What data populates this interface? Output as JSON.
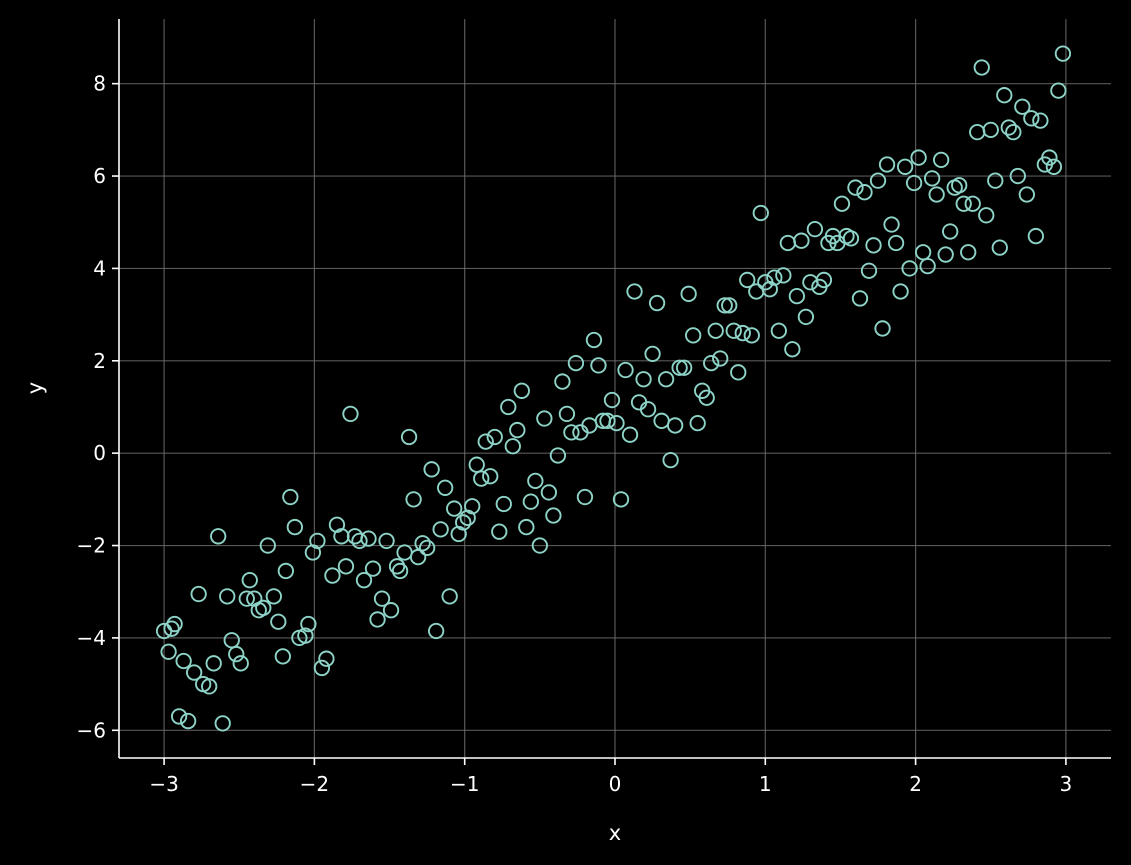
{
  "chart_data": {
    "type": "scatter",
    "xlabel": "x",
    "ylabel": "y",
    "xlim": [
      -3.3,
      3.3
    ],
    "ylim": [
      -6.6,
      9.4
    ],
    "x_ticks": [
      -3,
      -2,
      -1,
      0,
      1,
      2,
      3
    ],
    "y_ticks": [
      -6,
      -4,
      -2,
      0,
      2,
      4,
      6,
      8
    ],
    "x_tick_labels": [
      "−3",
      "−2",
      "−1",
      "0",
      "1",
      "2",
      "3"
    ],
    "y_tick_labels": [
      "−6",
      "−4",
      "−2",
      "0",
      "2",
      "4",
      "6",
      "8"
    ],
    "grid": true,
    "legend": false,
    "colors": {
      "background": "#000000",
      "marker": "#8dd3c7",
      "axis": "#ffffff",
      "grid": "#6e6e6e"
    },
    "marker": "hollow-circle",
    "series": [
      {
        "points": [
          [
            -3.0,
            -3.85
          ],
          [
            -2.97,
            -4.3
          ],
          [
            -2.95,
            -3.8
          ],
          [
            -2.93,
            -3.7
          ],
          [
            -2.9,
            -5.7
          ],
          [
            -2.87,
            -4.5
          ],
          [
            -2.84,
            -5.8
          ],
          [
            -2.8,
            -4.75
          ],
          [
            -2.77,
            -3.05
          ],
          [
            -2.74,
            -5.0
          ],
          [
            -2.7,
            -5.05
          ],
          [
            -2.67,
            -4.55
          ],
          [
            -2.64,
            -1.8
          ],
          [
            -2.61,
            -5.85
          ],
          [
            -2.58,
            -3.1
          ],
          [
            -2.55,
            -4.05
          ],
          [
            -2.52,
            -4.35
          ],
          [
            -2.49,
            -4.55
          ],
          [
            -2.45,
            -3.15
          ],
          [
            -2.43,
            -2.75
          ],
          [
            -2.4,
            -3.15
          ],
          [
            -2.37,
            -3.4
          ],
          [
            -2.34,
            -3.35
          ],
          [
            -2.31,
            -2.0
          ],
          [
            -2.27,
            -3.1
          ],
          [
            -2.24,
            -3.65
          ],
          [
            -2.21,
            -4.4
          ],
          [
            -2.19,
            -2.55
          ],
          [
            -2.16,
            -0.95
          ],
          [
            -2.13,
            -1.6
          ],
          [
            -2.1,
            -4.0
          ],
          [
            -2.06,
            -3.95
          ],
          [
            -2.04,
            -3.7
          ],
          [
            -2.01,
            -2.15
          ],
          [
            -1.98,
            -1.9
          ],
          [
            -1.95,
            -4.65
          ],
          [
            -1.92,
            -4.45
          ],
          [
            -1.88,
            -2.65
          ],
          [
            -1.85,
            -1.55
          ],
          [
            -1.82,
            -1.8
          ],
          [
            -1.79,
            -2.45
          ],
          [
            -1.76,
            0.85
          ],
          [
            -1.73,
            -1.8
          ],
          [
            -1.7,
            -1.9
          ],
          [
            -1.67,
            -2.75
          ],
          [
            -1.64,
            -1.85
          ],
          [
            -1.61,
            -2.5
          ],
          [
            -1.58,
            -3.6
          ],
          [
            -1.55,
            -3.15
          ],
          [
            -1.52,
            -1.9
          ],
          [
            -1.49,
            -3.4
          ],
          [
            -1.45,
            -2.45
          ],
          [
            -1.43,
            -2.55
          ],
          [
            -1.4,
            -2.15
          ],
          [
            -1.37,
            0.35
          ],
          [
            -1.34,
            -1.0
          ],
          [
            -1.31,
            -2.25
          ],
          [
            -1.28,
            -1.95
          ],
          [
            -1.25,
            -2.05
          ],
          [
            -1.22,
            -0.35
          ],
          [
            -1.19,
            -3.85
          ],
          [
            -1.16,
            -1.65
          ],
          [
            -1.13,
            -0.75
          ],
          [
            -1.1,
            -3.1
          ],
          [
            -1.07,
            -1.2
          ],
          [
            -1.04,
            -1.75
          ],
          [
            -1.01,
            -1.5
          ],
          [
            -0.98,
            -1.4
          ],
          [
            -0.95,
            -1.15
          ],
          [
            -0.92,
            -0.25
          ],
          [
            -0.89,
            -0.55
          ],
          [
            -0.86,
            0.25
          ],
          [
            -0.83,
            -0.5
          ],
          [
            -0.8,
            0.35
          ],
          [
            -0.77,
            -1.7
          ],
          [
            -0.74,
            -1.1
          ],
          [
            -0.71,
            1.0
          ],
          [
            -0.68,
            0.15
          ],
          [
            -0.65,
            0.5
          ],
          [
            -0.62,
            1.35
          ],
          [
            -0.59,
            -1.6
          ],
          [
            -0.56,
            -1.05
          ],
          [
            -0.53,
            -0.6
          ],
          [
            -0.5,
            -2.0
          ],
          [
            -0.47,
            0.75
          ],
          [
            -0.44,
            -0.85
          ],
          [
            -0.41,
            -1.35
          ],
          [
            -0.38,
            -0.05
          ],
          [
            -0.35,
            1.55
          ],
          [
            -0.32,
            0.85
          ],
          [
            -0.29,
            0.45
          ],
          [
            -0.26,
            1.95
          ],
          [
            -0.23,
            0.45
          ],
          [
            -0.2,
            -0.95
          ],
          [
            -0.17,
            0.6
          ],
          [
            -0.14,
            2.45
          ],
          [
            -0.11,
            1.9
          ],
          [
            -0.08,
            0.7
          ],
          [
            -0.05,
            0.7
          ],
          [
            -0.02,
            1.15
          ],
          [
            0.01,
            0.65
          ],
          [
            0.04,
            -1.0
          ],
          [
            0.07,
            1.8
          ],
          [
            0.1,
            0.4
          ],
          [
            0.13,
            3.5
          ],
          [
            0.16,
            1.1
          ],
          [
            0.19,
            1.6
          ],
          [
            0.22,
            0.95
          ],
          [
            0.25,
            2.15
          ],
          [
            0.28,
            3.25
          ],
          [
            0.31,
            0.7
          ],
          [
            0.34,
            1.6
          ],
          [
            0.37,
            -0.15
          ],
          [
            0.4,
            0.6
          ],
          [
            0.43,
            1.85
          ],
          [
            0.46,
            1.85
          ],
          [
            0.49,
            3.45
          ],
          [
            0.52,
            2.55
          ],
          [
            0.55,
            0.65
          ],
          [
            0.58,
            1.35
          ],
          [
            0.61,
            1.2
          ],
          [
            0.64,
            1.95
          ],
          [
            0.67,
            2.65
          ],
          [
            0.7,
            2.05
          ],
          [
            0.73,
            3.2
          ],
          [
            0.76,
            3.2
          ],
          [
            0.79,
            2.65
          ],
          [
            0.82,
            1.75
          ],
          [
            0.85,
            2.6
          ],
          [
            0.88,
            3.75
          ],
          [
            0.91,
            2.55
          ],
          [
            0.94,
            3.5
          ],
          [
            0.97,
            5.2
          ],
          [
            1.0,
            3.7
          ],
          [
            1.03,
            3.55
          ],
          [
            1.06,
            3.8
          ],
          [
            1.09,
            2.65
          ],
          [
            1.12,
            3.85
          ],
          [
            1.15,
            4.55
          ],
          [
            1.18,
            2.25
          ],
          [
            1.21,
            3.4
          ],
          [
            1.24,
            4.6
          ],
          [
            1.27,
            2.95
          ],
          [
            1.3,
            3.7
          ],
          [
            1.33,
            4.85
          ],
          [
            1.36,
            3.6
          ],
          [
            1.39,
            3.75
          ],
          [
            1.42,
            4.55
          ],
          [
            1.45,
            4.7
          ],
          [
            1.48,
            4.55
          ],
          [
            1.51,
            5.4
          ],
          [
            1.54,
            4.7
          ],
          [
            1.57,
            4.65
          ],
          [
            1.6,
            5.75
          ],
          [
            1.63,
            3.35
          ],
          [
            1.66,
            5.65
          ],
          [
            1.69,
            3.95
          ],
          [
            1.72,
            4.5
          ],
          [
            1.75,
            5.9
          ],
          [
            1.78,
            2.7
          ],
          [
            1.81,
            6.25
          ],
          [
            1.84,
            4.95
          ],
          [
            1.87,
            4.55
          ],
          [
            1.9,
            3.5
          ],
          [
            1.93,
            6.2
          ],
          [
            1.96,
            4.0
          ],
          [
            1.99,
            5.85
          ],
          [
            2.02,
            6.4
          ],
          [
            2.05,
            4.35
          ],
          [
            2.08,
            4.05
          ],
          [
            2.11,
            5.95
          ],
          [
            2.14,
            5.6
          ],
          [
            2.17,
            6.35
          ],
          [
            2.2,
            4.3
          ],
          [
            2.23,
            4.8
          ],
          [
            2.26,
            5.75
          ],
          [
            2.29,
            5.8
          ],
          [
            2.32,
            5.4
          ],
          [
            2.35,
            4.35
          ],
          [
            2.38,
            5.4
          ],
          [
            2.41,
            6.95
          ],
          [
            2.44,
            8.35
          ],
          [
            2.47,
            5.15
          ],
          [
            2.5,
            7.0
          ],
          [
            2.53,
            5.9
          ],
          [
            2.56,
            4.45
          ],
          [
            2.59,
            7.75
          ],
          [
            2.62,
            7.05
          ],
          [
            2.65,
            6.95
          ],
          [
            2.68,
            6.0
          ],
          [
            2.71,
            7.5
          ],
          [
            2.74,
            5.6
          ],
          [
            2.77,
            7.25
          ],
          [
            2.8,
            4.7
          ],
          [
            2.83,
            7.2
          ],
          [
            2.86,
            6.25
          ],
          [
            2.89,
            6.4
          ],
          [
            2.92,
            6.2
          ],
          [
            2.95,
            7.85
          ],
          [
            2.98,
            8.65
          ]
        ]
      }
    ]
  }
}
